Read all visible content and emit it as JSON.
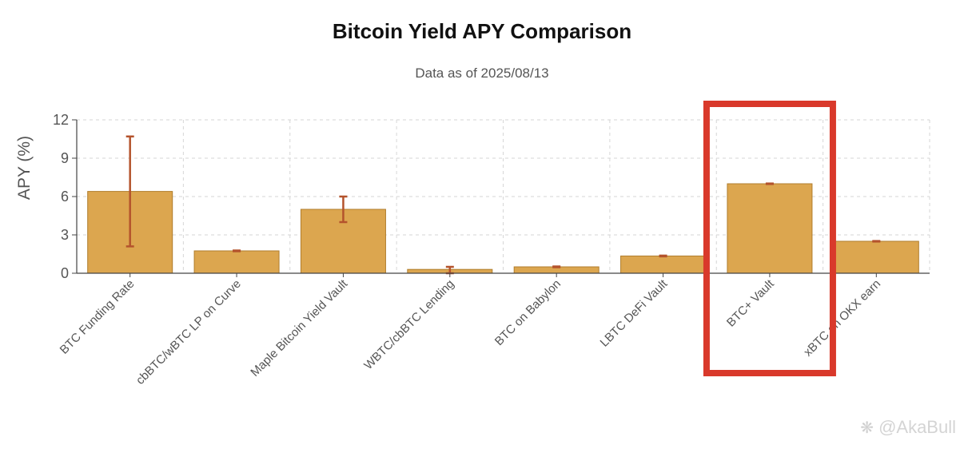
{
  "chart_data": {
    "type": "bar",
    "title": "Bitcoin Yield APY Comparison",
    "subtitle": "Data as of 2025/08/13",
    "ylabel": "APY (%)",
    "xlabel": "",
    "ylim": [
      0,
      12
    ],
    "yticks": [
      0,
      3,
      6,
      9,
      12
    ],
    "grid": true,
    "categories": [
      "BTC Funding Rate",
      "cbBTC/wBTC LP on Curve",
      "Maple Bitcoin Yield Vault",
      "WBTC/cbBTC Lending",
      "BTC on Babylon",
      "LBTC DeFi Vault",
      "BTC+ Vault",
      "xBTC on OKX earn"
    ],
    "values": [
      6.4,
      1.75,
      5.0,
      0.3,
      0.5,
      1.35,
      7.0,
      2.5
    ],
    "error_low": [
      2.1,
      1.72,
      4.0,
      0.0,
      0.47,
      1.32,
      6.98,
      2.48
    ],
    "error_high": [
      10.7,
      1.78,
      6.0,
      0.5,
      0.53,
      1.38,
      7.02,
      2.52
    ],
    "highlighted_category": "BTC+ Vault",
    "colors": {
      "bar": "#dca64f",
      "bar_border": "#b07d2c",
      "error_bar": "#b4532c",
      "highlight_box": "#d9392b",
      "grid": "#d6d6d6",
      "axis": "#444444"
    }
  },
  "watermark": {
    "icon": "brand-logo-icon",
    "text": "@AkaBull"
  }
}
